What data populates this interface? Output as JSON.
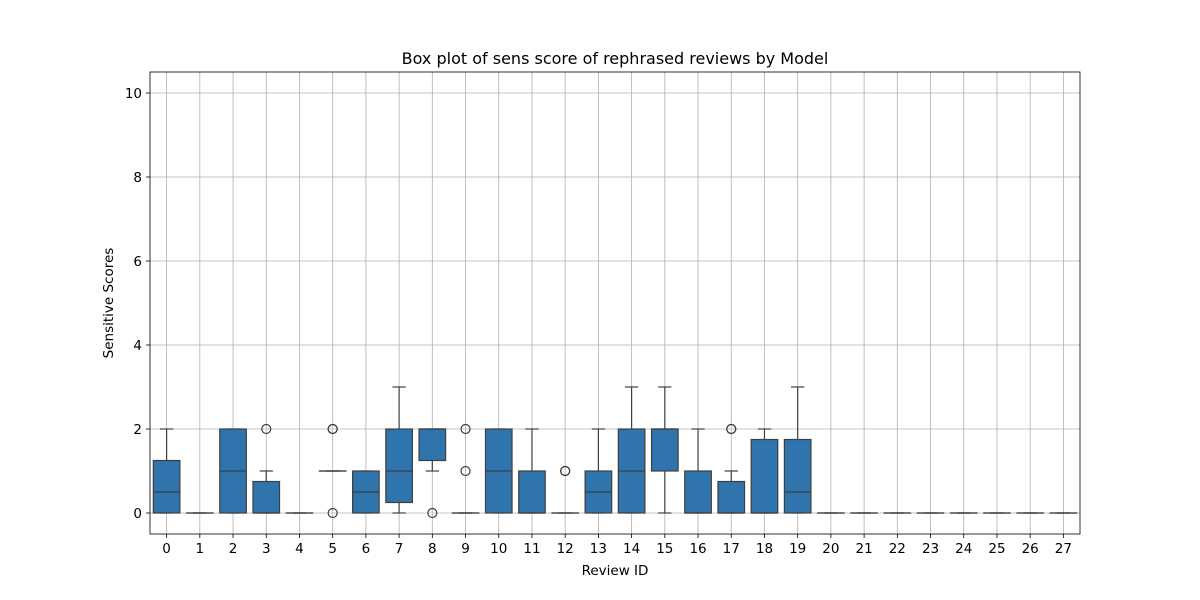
{
  "chart_data": {
    "type": "box",
    "title": "Box plot of sens score of rephrased reviews by Model",
    "xlabel": "Review ID",
    "ylabel": "Sensitive Scores",
    "ylim": [
      -0.5,
      10.5
    ],
    "yticks": [
      0,
      2,
      4,
      6,
      8,
      10
    ],
    "grid": true,
    "box_color": "#2f74ad",
    "edge_color": "#3f3f3f",
    "categories": [
      "0",
      "1",
      "2",
      "3",
      "4",
      "5",
      "6",
      "7",
      "8",
      "9",
      "10",
      "11",
      "12",
      "13",
      "14",
      "15",
      "16",
      "17",
      "18",
      "19",
      "20",
      "21",
      "22",
      "23",
      "24",
      "25",
      "26",
      "27"
    ],
    "boxes": [
      {
        "id": "0",
        "q1": 0,
        "median": 0.5,
        "q3": 1.25,
        "whisker_low": 0,
        "whisker_high": 2,
        "outliers": []
      },
      {
        "id": "1",
        "q1": 0,
        "median": 0,
        "q3": 0,
        "whisker_low": 0,
        "whisker_high": 0,
        "outliers": []
      },
      {
        "id": "2",
        "q1": 0,
        "median": 1,
        "q3": 2,
        "whisker_low": 0,
        "whisker_high": 2,
        "outliers": []
      },
      {
        "id": "3",
        "q1": 0,
        "median": 0,
        "q3": 0.75,
        "whisker_low": 0,
        "whisker_high": 1,
        "outliers": [
          2
        ]
      },
      {
        "id": "4",
        "q1": 0,
        "median": 0,
        "q3": 0,
        "whisker_low": 0,
        "whisker_high": 0,
        "outliers": []
      },
      {
        "id": "5",
        "q1": 1,
        "median": 1,
        "q3": 1,
        "whisker_low": 1,
        "whisker_high": 1,
        "outliers": [
          0,
          2,
          2
        ]
      },
      {
        "id": "6",
        "q1": 0,
        "median": 0.5,
        "q3": 1,
        "whisker_low": 0,
        "whisker_high": 1,
        "outliers": []
      },
      {
        "id": "7",
        "q1": 0.25,
        "median": 1,
        "q3": 2,
        "whisker_low": 0,
        "whisker_high": 3,
        "outliers": []
      },
      {
        "id": "8",
        "q1": 1.25,
        "median": 2,
        "q3": 2,
        "whisker_low": 1,
        "whisker_high": 2,
        "outliers": [
          0
        ]
      },
      {
        "id": "9",
        "q1": 0,
        "median": 0,
        "q3": 0,
        "whisker_low": 0,
        "whisker_high": 0,
        "outliers": [
          1,
          2
        ]
      },
      {
        "id": "10",
        "q1": 0,
        "median": 1,
        "q3": 2,
        "whisker_low": 0,
        "whisker_high": 2,
        "outliers": []
      },
      {
        "id": "11",
        "q1": 0,
        "median": 0,
        "q3": 1,
        "whisker_low": 0,
        "whisker_high": 2,
        "outliers": []
      },
      {
        "id": "12",
        "q1": 0,
        "median": 0,
        "q3": 0,
        "whisker_low": 0,
        "whisker_high": 0,
        "outliers": [
          1,
          1
        ]
      },
      {
        "id": "13",
        "q1": 0,
        "median": 0.5,
        "q3": 1,
        "whisker_low": 0,
        "whisker_high": 2,
        "outliers": []
      },
      {
        "id": "14",
        "q1": 0,
        "median": 1,
        "q3": 2,
        "whisker_low": 0,
        "whisker_high": 3,
        "outliers": []
      },
      {
        "id": "15",
        "q1": 1,
        "median": 2,
        "q3": 2,
        "whisker_low": 0,
        "whisker_high": 3,
        "outliers": []
      },
      {
        "id": "16",
        "q1": 0,
        "median": 0,
        "q3": 1,
        "whisker_low": 0,
        "whisker_high": 2,
        "outliers": []
      },
      {
        "id": "17",
        "q1": 0,
        "median": 0,
        "q3": 0.75,
        "whisker_low": 0,
        "whisker_high": 1,
        "outliers": [
          2,
          2
        ]
      },
      {
        "id": "18",
        "q1": 0,
        "median": 0,
        "q3": 1.75,
        "whisker_low": 0,
        "whisker_high": 2,
        "outliers": []
      },
      {
        "id": "19",
        "q1": 0,
        "median": 0.5,
        "q3": 1.75,
        "whisker_low": 0,
        "whisker_high": 3,
        "outliers": []
      },
      {
        "id": "20",
        "q1": 0,
        "median": 0,
        "q3": 0,
        "whisker_low": 0,
        "whisker_high": 0,
        "outliers": []
      },
      {
        "id": "21",
        "q1": 0,
        "median": 0,
        "q3": 0,
        "whisker_low": 0,
        "whisker_high": 0,
        "outliers": []
      },
      {
        "id": "22",
        "q1": 0,
        "median": 0,
        "q3": 0,
        "whisker_low": 0,
        "whisker_high": 0,
        "outliers": []
      },
      {
        "id": "23",
        "q1": 0,
        "median": 0,
        "q3": 0,
        "whisker_low": 0,
        "whisker_high": 0,
        "outliers": []
      },
      {
        "id": "24",
        "q1": 0,
        "median": 0,
        "q3": 0,
        "whisker_low": 0,
        "whisker_high": 0,
        "outliers": []
      },
      {
        "id": "25",
        "q1": 0,
        "median": 0,
        "q3": 0,
        "whisker_low": 0,
        "whisker_high": 0,
        "outliers": []
      },
      {
        "id": "26",
        "q1": 0,
        "median": 0,
        "q3": 0,
        "whisker_low": 0,
        "whisker_high": 0,
        "outliers": []
      },
      {
        "id": "27",
        "q1": 0,
        "median": 0,
        "q3": 0,
        "whisker_low": 0,
        "whisker_high": 0,
        "outliers": []
      }
    ]
  }
}
